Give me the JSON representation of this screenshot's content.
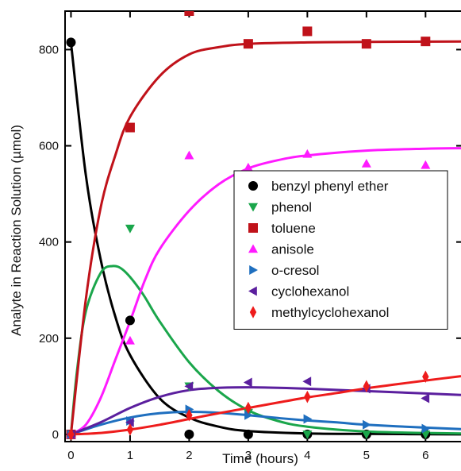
{
  "chart_data": {
    "type": "scatter",
    "title": "",
    "xlabel": "Time (hours)",
    "ylabel": "Analyte in Reaction Solution (µmol)",
    "xlim": [
      -0.1,
      6.6
    ],
    "ylim": [
      -15,
      880
    ],
    "x_ticks": [
      0,
      1,
      2,
      3,
      4,
      5,
      6
    ],
    "y_ticks": [
      0,
      200,
      400,
      600,
      800
    ],
    "grid": false,
    "legend_position": "center-right",
    "series": [
      {
        "name": "benzyl phenyl ether",
        "color": "#000000",
        "marker": "circle",
        "points": [
          [
            0,
            815
          ],
          [
            1,
            237
          ],
          [
            2,
            0
          ],
          [
            3,
            0
          ],
          [
            4,
            0
          ],
          [
            5,
            0
          ],
          [
            6,
            0
          ]
        ],
        "fit": [
          [
            0,
            815
          ],
          [
            0.25,
            540
          ],
          [
            0.5,
            365
          ],
          [
            0.75,
            245
          ],
          [
            1,
            165
          ],
          [
            1.5,
            75
          ],
          [
            2,
            35
          ],
          [
            2.5,
            16
          ],
          [
            3,
            7
          ],
          [
            4,
            2
          ],
          [
            5,
            1
          ],
          [
            6.6,
            0
          ]
        ]
      },
      {
        "name": "phenol",
        "color": "#1aa64b",
        "marker": "triangle-down",
        "points": [
          [
            0,
            0
          ],
          [
            1,
            428
          ],
          [
            2,
            100
          ],
          [
            3,
            45
          ],
          [
            4,
            0
          ],
          [
            5,
            0
          ],
          [
            6,
            0
          ]
        ],
        "fit": [
          [
            0,
            0
          ],
          [
            0.1,
            130
          ],
          [
            0.25,
            255
          ],
          [
            0.5,
            335
          ],
          [
            0.7,
            350
          ],
          [
            0.9,
            340
          ],
          [
            1.2,
            295
          ],
          [
            1.5,
            235
          ],
          [
            2,
            150
          ],
          [
            2.5,
            90
          ],
          [
            3,
            50
          ],
          [
            3.5,
            28
          ],
          [
            4,
            16
          ],
          [
            5,
            6
          ],
          [
            6,
            3
          ],
          [
            6.6,
            2
          ]
        ]
      },
      {
        "name": "toluene",
        "color": "#c0121a",
        "marker": "square",
        "points": [
          [
            0,
            0
          ],
          [
            1,
            638
          ],
          [
            2,
            880
          ],
          [
            3,
            812
          ],
          [
            4,
            838
          ],
          [
            5,
            812
          ],
          [
            6,
            817
          ]
        ],
        "fit": [
          [
            0,
            0
          ],
          [
            0.25,
            280
          ],
          [
            0.5,
            470
          ],
          [
            0.75,
            580
          ],
          [
            1,
            660
          ],
          [
            1.5,
            745
          ],
          [
            2,
            790
          ],
          [
            2.5,
            805
          ],
          [
            3,
            812
          ],
          [
            4,
            815
          ],
          [
            5,
            816
          ],
          [
            6.6,
            817
          ]
        ]
      },
      {
        "name": "anisole",
        "color": "#ff1aff",
        "marker": "triangle-up",
        "points": [
          [
            0,
            0
          ],
          [
            1,
            195
          ],
          [
            2,
            580
          ],
          [
            3,
            555
          ],
          [
            4,
            583
          ],
          [
            5,
            563
          ],
          [
            6,
            560
          ]
        ],
        "fit": [
          [
            0,
            0
          ],
          [
            0.25,
            20
          ],
          [
            0.5,
            75
          ],
          [
            0.75,
            155
          ],
          [
            1,
            235
          ],
          [
            1.25,
            320
          ],
          [
            1.5,
            385
          ],
          [
            2,
            465
          ],
          [
            2.5,
            520
          ],
          [
            3,
            553
          ],
          [
            3.5,
            570
          ],
          [
            4,
            580
          ],
          [
            5,
            590
          ],
          [
            6,
            594
          ],
          [
            6.6,
            595
          ]
        ]
      },
      {
        "name": "o-cresol",
        "color": "#1f6fbf",
        "marker": "triangle-right",
        "points": [
          [
            0,
            0
          ],
          [
            1,
            28
          ],
          [
            2,
            52
          ],
          [
            3,
            40
          ],
          [
            4,
            32
          ],
          [
            5,
            20
          ],
          [
            6,
            12
          ]
        ],
        "fit": [
          [
            0,
            0
          ],
          [
            0.5,
            20
          ],
          [
            1,
            35
          ],
          [
            1.5,
            44
          ],
          [
            2,
            47
          ],
          [
            2.5,
            45
          ],
          [
            3,
            40
          ],
          [
            3.5,
            34
          ],
          [
            4,
            29
          ],
          [
            4.5,
            25
          ],
          [
            5,
            20
          ],
          [
            6,
            14
          ],
          [
            6.6,
            11
          ]
        ]
      },
      {
        "name": "cyclohexanol",
        "color": "#5b1f9e",
        "marker": "triangle-left",
        "points": [
          [
            0,
            0
          ],
          [
            1,
            25
          ],
          [
            2,
            100
          ],
          [
            3,
            108
          ],
          [
            4,
            110
          ],
          [
            5,
            95
          ],
          [
            6,
            75
          ]
        ],
        "fit": [
          [
            0,
            0
          ],
          [
            0.5,
            25
          ],
          [
            1,
            55
          ],
          [
            1.5,
            78
          ],
          [
            2,
            92
          ],
          [
            2.5,
            97
          ],
          [
            3,
            98
          ],
          [
            3.5,
            97
          ],
          [
            4,
            95
          ],
          [
            5,
            90
          ],
          [
            6,
            85
          ],
          [
            6.6,
            82
          ]
        ]
      },
      {
        "name": "methylcyclohexanol",
        "color": "#ee1c1c",
        "marker": "diamond",
        "points": [
          [
            0,
            0
          ],
          [
            1,
            10
          ],
          [
            2,
            40
          ],
          [
            3,
            55
          ],
          [
            4,
            78
          ],
          [
            5,
            100
          ],
          [
            6,
            120
          ]
        ],
        "fit": [
          [
            0,
            0
          ],
          [
            0.5,
            3
          ],
          [
            1,
            10
          ],
          [
            1.5,
            20
          ],
          [
            2,
            32
          ],
          [
            2.5,
            44
          ],
          [
            3,
            55
          ],
          [
            3.5,
            66
          ],
          [
            4,
            77
          ],
          [
            4.5,
            86
          ],
          [
            5,
            96
          ],
          [
            5.5,
            104
          ],
          [
            6,
            112
          ],
          [
            6.6,
            121
          ]
        ]
      }
    ]
  }
}
